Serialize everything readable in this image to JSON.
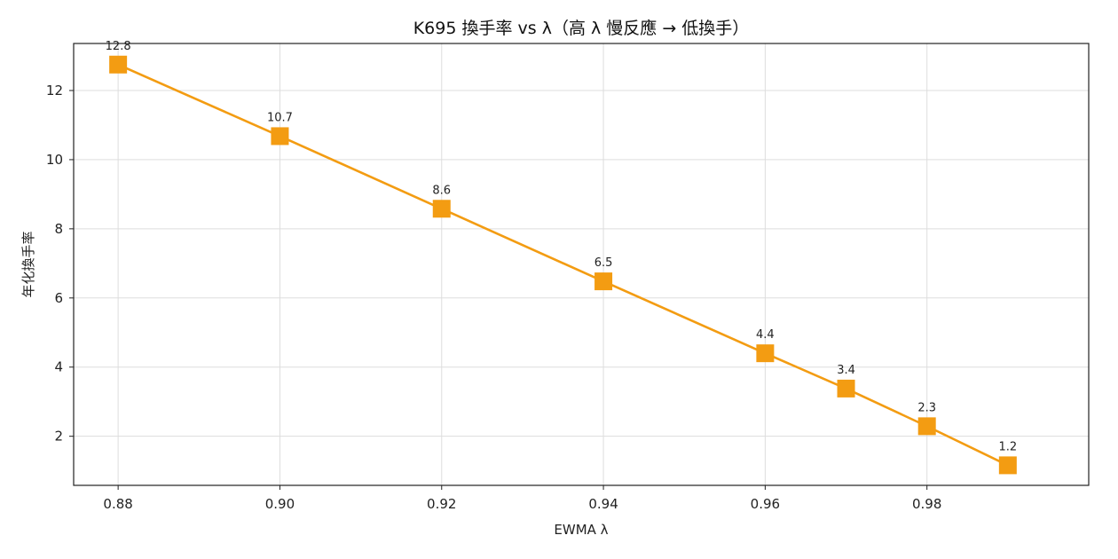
{
  "chart_data": {
    "type": "line",
    "title": "K695 換手率 vs λ（高 λ 慢反應 → 低換手）",
    "xlabel": "EWMA λ",
    "ylabel": "年化換手率",
    "x": [
      0.88,
      0.9,
      0.92,
      0.94,
      0.96,
      0.97,
      0.98,
      0.99
    ],
    "series": [
      {
        "values": [
          12.75,
          10.68,
          8.58,
          6.48,
          4.4,
          3.38,
          2.29,
          1.16
        ],
        "labels": [
          "12.8",
          "10.7",
          "8.6",
          "6.5",
          "4.4",
          "3.4",
          "2.3",
          "1.2"
        ],
        "color": "#f39c12",
        "marker": "square"
      }
    ],
    "xlim": [
      0.8745,
      1.0
    ],
    "ylim": [
      0.58,
      13.36
    ],
    "xticks": [
      "0.88",
      "0.90",
      "0.92",
      "0.94",
      "0.96",
      "0.98"
    ],
    "yticks": [
      "2",
      "4",
      "6",
      "8",
      "10",
      "12"
    ],
    "grid": true,
    "legend": "none"
  }
}
